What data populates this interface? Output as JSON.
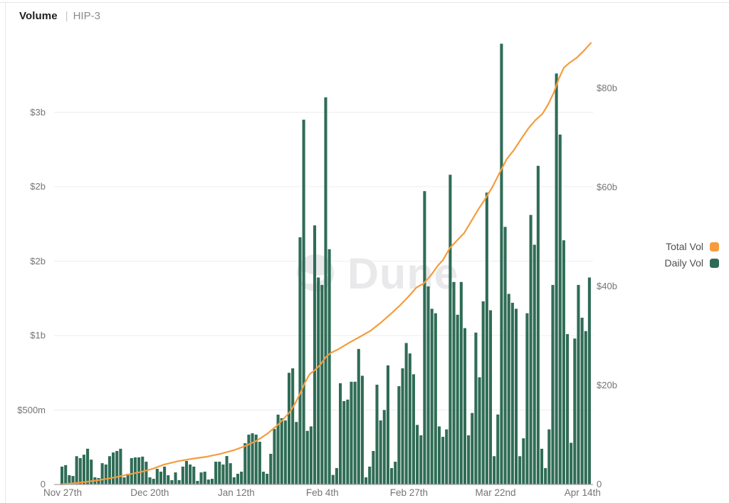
{
  "header": {
    "title": "Volume",
    "separator": "|",
    "subtitle": "HIP-3"
  },
  "watermark": {
    "text": "Dune"
  },
  "legend": [
    {
      "label": "Total Vol",
      "color": "#f59c3c"
    },
    {
      "label": "Daily Vol",
      "color": "#2f6c56"
    }
  ],
  "chart_data": {
    "type": "bar",
    "title": "Volume | HIP-3",
    "grid": true,
    "legend_position": "right",
    "colors": {
      "daily_bar": "#2f6c56",
      "total_line": "#f59c3c",
      "gridline": "#ededf0",
      "axis_line": "#a8a8a8",
      "tick_text": "#757575",
      "watermark": "#e9e9ec"
    },
    "left_axis": {
      "label": "Daily Vol",
      "range_b": [
        0,
        3.01
      ],
      "ticks": [
        {
          "value_b": 0,
          "label": "0"
        },
        {
          "value_b": 0.5,
          "label": "$500m"
        },
        {
          "value_b": 1,
          "label": "$1b"
        },
        {
          "value_b": 1.5,
          "label": "$2b"
        },
        {
          "value_b": 2,
          "label": "$2b"
        },
        {
          "value_b": 2.5,
          "label": "$3b"
        }
      ]
    },
    "right_axis": {
      "label": "Total Vol",
      "range_b": [
        0,
        90.6
      ],
      "ticks": [
        {
          "value_b": 0,
          "label": "0"
        },
        {
          "value_b": 20,
          "label": "$20b"
        },
        {
          "value_b": 40,
          "label": "$40b"
        },
        {
          "value_b": 60,
          "label": "$60b"
        },
        {
          "value_b": 80,
          "label": "$80b"
        }
      ]
    },
    "x_axis": {
      "ticks": [
        {
          "label": "Nov 27th",
          "pos": 0.004
        },
        {
          "label": "Dec 20th",
          "pos": 0.168
        },
        {
          "label": "Jan 12th",
          "pos": 0.331
        },
        {
          "label": "Feb 4th",
          "pos": 0.493
        },
        {
          "label": "Feb 27th",
          "pos": 0.656
        },
        {
          "label": "Mar 22nd",
          "pos": 0.819
        },
        {
          "label": "Apr 14th",
          "pos": 0.983
        }
      ]
    },
    "series": [
      {
        "name": "Daily Vol",
        "type": "bar",
        "unit": "$m",
        "values": [
          120,
          130,
          62,
          57,
          190,
          177,
          200,
          240,
          167,
          48,
          43,
          143,
          134,
          190,
          215,
          225,
          240,
          48,
          72,
          177,
          182,
          182,
          187,
          153,
          48,
          38,
          105,
          86,
          120,
          62,
          29,
          81,
          29,
          120,
          158,
          134,
          120,
          24,
          81,
          86,
          33,
          38,
          153,
          153,
          134,
          191,
          143,
          48,
          72,
          86,
          277,
          335,
          344,
          335,
          287,
          86,
          72,
          206,
          373,
          469,
          445,
          430,
          750,
          780,
          420,
          1660,
          2450,
          360,
          390,
          1740,
          1390,
          1340,
          2600,
          1580,
          64,
          110,
          680,
          560,
          570,
          690,
          690,
          910,
          730,
          48,
          120,
          225,
          670,
          430,
          500,
          800,
          110,
          153,
          660,
          780,
          950,
          880,
          740,
          400,
          330,
          1970,
          1330,
          1180,
          1150,
          390,
          320,
          370,
          2080,
          1360,
          1140,
          1360,
          1050,
          330,
          480,
          1020,
          720,
          1230,
          1960,
          1170,
          190,
          470,
          2960,
          1730,
          1280,
          1220,
          1180,
          190,
          310,
          1150,
          1810,
          1610,
          2140,
          240,
          110,
          370,
          1340,
          2760,
          2350,
          1640,
          1010,
          280,
          980,
          1340,
          1120,
          1030,
          1390
        ]
      },
      {
        "name": "Total Vol",
        "type": "line",
        "unit": "$b",
        "points": [
          [
            85,
            0
          ],
          [
            100,
            0.2
          ],
          [
            120,
            0.5
          ],
          [
            140,
            0.9
          ],
          [
            160,
            1.4
          ],
          [
            180,
            2.0
          ],
          [
            200,
            2.6
          ],
          [
            215,
            3.2
          ],
          [
            230,
            4.0
          ],
          [
            250,
            4.7
          ],
          [
            270,
            5.2
          ],
          [
            290,
            5.6
          ],
          [
            310,
            6.2
          ],
          [
            330,
            7.0
          ],
          [
            345,
            7.8
          ],
          [
            360,
            8.8
          ],
          [
            375,
            10.2
          ],
          [
            390,
            12.0
          ],
          [
            400,
            13.5
          ],
          [
            408,
            14.8
          ],
          [
            415,
            16.5
          ],
          [
            422,
            18.5
          ],
          [
            428,
            20.5
          ],
          [
            435,
            22.3
          ],
          [
            443,
            23.2
          ],
          [
            450,
            24.2
          ],
          [
            458,
            25.8
          ],
          [
            465,
            26.6
          ],
          [
            475,
            27.3
          ],
          [
            490,
            28.6
          ],
          [
            505,
            29.8
          ],
          [
            520,
            31.0
          ],
          [
            535,
            32.7
          ],
          [
            550,
            34.6
          ],
          [
            562,
            36.2
          ],
          [
            574,
            38.0
          ],
          [
            585,
            39.8
          ],
          [
            595,
            40.6
          ],
          [
            605,
            42.2
          ],
          [
            615,
            44.2
          ],
          [
            622,
            45.3
          ],
          [
            632,
            47.8
          ],
          [
            642,
            49.3
          ],
          [
            652,
            50.8
          ],
          [
            662,
            53.2
          ],
          [
            672,
            55.6
          ],
          [
            682,
            57.8
          ],
          [
            692,
            60.2
          ],
          [
            702,
            63.0
          ],
          [
            712,
            65.8
          ],
          [
            722,
            67.6
          ],
          [
            732,
            69.8
          ],
          [
            742,
            71.9
          ],
          [
            752,
            73.6
          ],
          [
            762,
            74.9
          ],
          [
            770,
            76.8
          ],
          [
            778,
            79.2
          ],
          [
            785,
            82.0
          ],
          [
            792,
            84.2
          ],
          [
            800,
            85.2
          ],
          [
            810,
            86.2
          ],
          [
            820,
            87.6
          ],
          [
            830,
            89.2
          ]
        ]
      }
    ]
  }
}
